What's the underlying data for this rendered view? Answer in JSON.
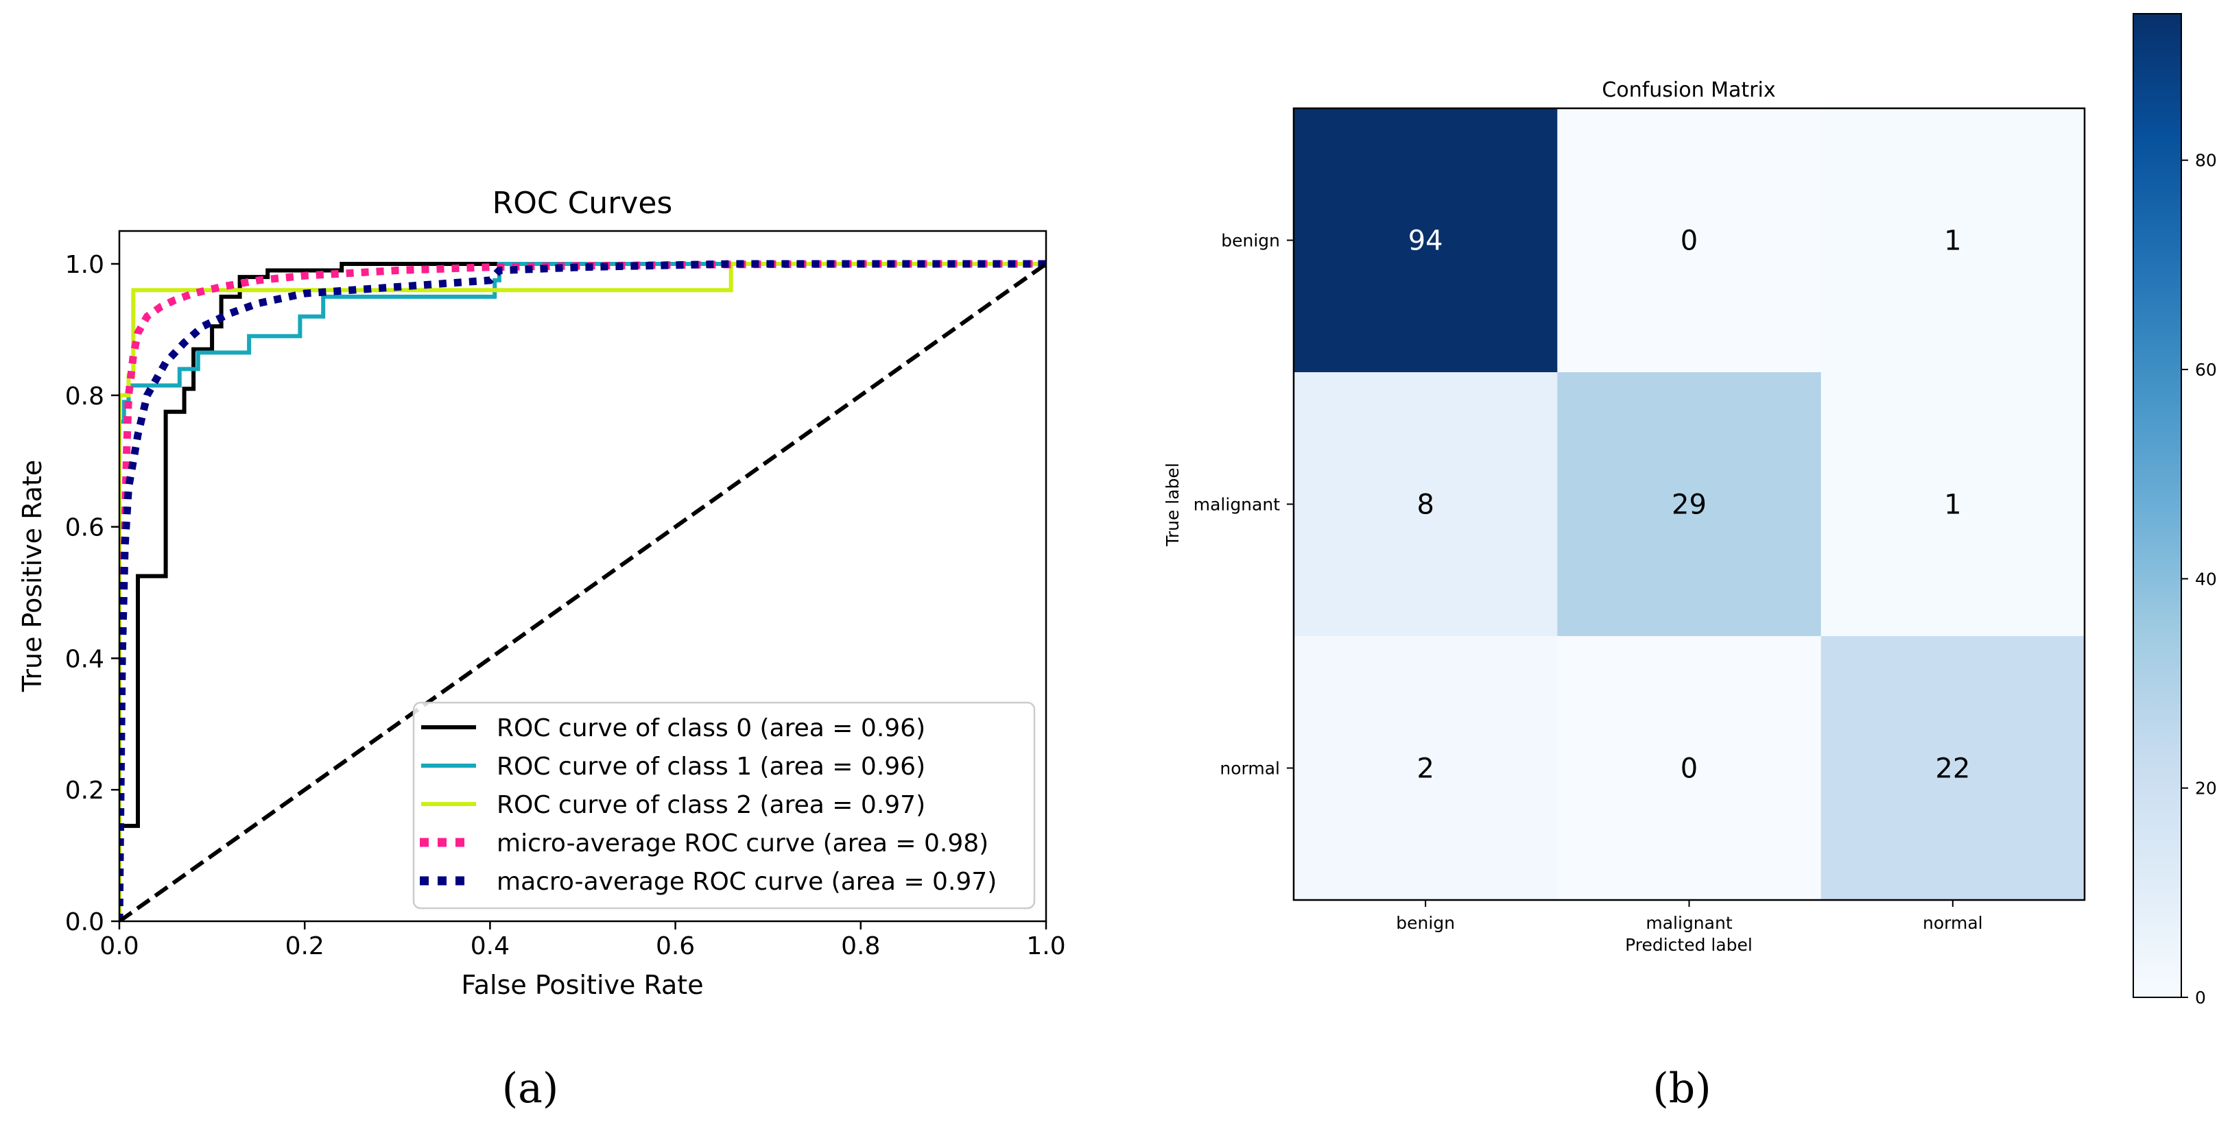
{
  "chart_data": [
    {
      "type": "line",
      "title": "ROC Curves",
      "xlabel": "False Positive Rate",
      "ylabel": "True Positive Rate",
      "xlim": [
        0.0,
        1.0
      ],
      "ylim": [
        0.0,
        1.05
      ],
      "xticks": [
        "0.0",
        "0.2",
        "0.4",
        "0.6",
        "0.8",
        "1.0"
      ],
      "yticks": [
        "0.0",
        "0.2",
        "0.4",
        "0.6",
        "0.8",
        "1.0"
      ],
      "legend_position": "lower-right",
      "caption": "(a)",
      "series": [
        {
          "name": "ROC curve of class 0 (area = 0.96)",
          "color": "#000000",
          "style": "solid",
          "x": [
            0,
            0,
            0.02,
            0.02,
            0.05,
            0.05,
            0.07,
            0.07,
            0.08,
            0.08,
            0.1,
            0.1,
            0.11,
            0.11,
            0.13,
            0.13,
            0.16,
            0.16,
            0.24,
            0.24,
            1.0
          ],
          "y": [
            0,
            0.145,
            0.145,
            0.525,
            0.525,
            0.775,
            0.775,
            0.81,
            0.81,
            0.87,
            0.87,
            0.905,
            0.905,
            0.95,
            0.95,
            0.98,
            0.98,
            0.99,
            0.99,
            1.0,
            1.0
          ]
        },
        {
          "name": "ROC curve of class 1 (area = 0.96)",
          "color": "#17a8bb",
          "style": "solid",
          "x": [
            0,
            0,
            0.005,
            0.005,
            0.01,
            0.01,
            0.065,
            0.065,
            0.085,
            0.085,
            0.105,
            0.105,
            0.14,
            0.14,
            0.195,
            0.195,
            0.22,
            0.22,
            0.405,
            0.405,
            0.41,
            0.41,
            1.0
          ],
          "y": [
            0,
            0.76,
            0.76,
            0.79,
            0.79,
            0.815,
            0.815,
            0.84,
            0.84,
            0.865,
            0.865,
            0.865,
            0.865,
            0.89,
            0.89,
            0.92,
            0.92,
            0.95,
            0.95,
            0.975,
            0.975,
            1.0,
            1.0
          ]
        },
        {
          "name": "ROC curve of class 2 (area = 0.97)",
          "color": "#ccee11",
          "style": "solid",
          "x": [
            0,
            0,
            0.01,
            0.01,
            0.015,
            0.015,
            0.66,
            0.66,
            1.0
          ],
          "y": [
            0,
            0.8,
            0.8,
            0.83,
            0.83,
            0.96,
            0.96,
            1.0,
            1.0
          ]
        },
        {
          "name": "micro-average ROC curve (area = 0.98)",
          "color": "#ff1f8e",
          "style": "dotted",
          "x": [
            0,
            0.002,
            0.005,
            0.008,
            0.01,
            0.015,
            0.02,
            0.03,
            0.045,
            0.06,
            0.08,
            0.11,
            0.15,
            0.2,
            0.3,
            0.4,
            0.5,
            0.65,
            0.8,
            1.0
          ],
          "y": [
            0,
            0.35,
            0.55,
            0.72,
            0.8,
            0.86,
            0.895,
            0.92,
            0.935,
            0.945,
            0.955,
            0.965,
            0.975,
            0.982,
            0.99,
            0.995,
            0.997,
            0.999,
            1.0,
            1.0
          ]
        },
        {
          "name": "macro-average ROC curve (area = 0.97)",
          "color": "#000080",
          "style": "dotted",
          "x": [
            0,
            0.003,
            0.006,
            0.01,
            0.015,
            0.02,
            0.03,
            0.05,
            0.07,
            0.09,
            0.12,
            0.15,
            0.2,
            0.3,
            0.4,
            0.41,
            0.5,
            0.66,
            0.8,
            1.0
          ],
          "y": [
            0,
            0.4,
            0.57,
            0.66,
            0.7,
            0.74,
            0.8,
            0.85,
            0.88,
            0.905,
            0.925,
            0.94,
            0.955,
            0.965,
            0.975,
            0.99,
            0.995,
            1.0,
            1.0,
            1.0
          ]
        },
        {
          "name": "",
          "color": "#000000",
          "style": "dashed",
          "x": [
            0,
            1
          ],
          "y": [
            0,
            1
          ]
        }
      ]
    },
    {
      "type": "heatmap",
      "title": "Confusion Matrix",
      "xlabel": "Predicted label",
      "ylabel": "True label",
      "rows": [
        "benign",
        "malignant",
        "normal"
      ],
      "cols": [
        "benign",
        "malignant",
        "normal"
      ],
      "values": [
        [
          94,
          0,
          1
        ],
        [
          8,
          29,
          1
        ],
        [
          2,
          0,
          22
        ]
      ],
      "cell_labels": [
        [
          "94",
          "0",
          "1"
        ],
        [
          "8",
          "29",
          "1"
        ],
        [
          "2",
          "0",
          "22"
        ]
      ],
      "colormap": "Blues",
      "colorbar_range": [
        0,
        94
      ],
      "colorbar_ticks": [
        "0",
        "20",
        "40",
        "60",
        "80"
      ],
      "caption": "(b)"
    }
  ]
}
